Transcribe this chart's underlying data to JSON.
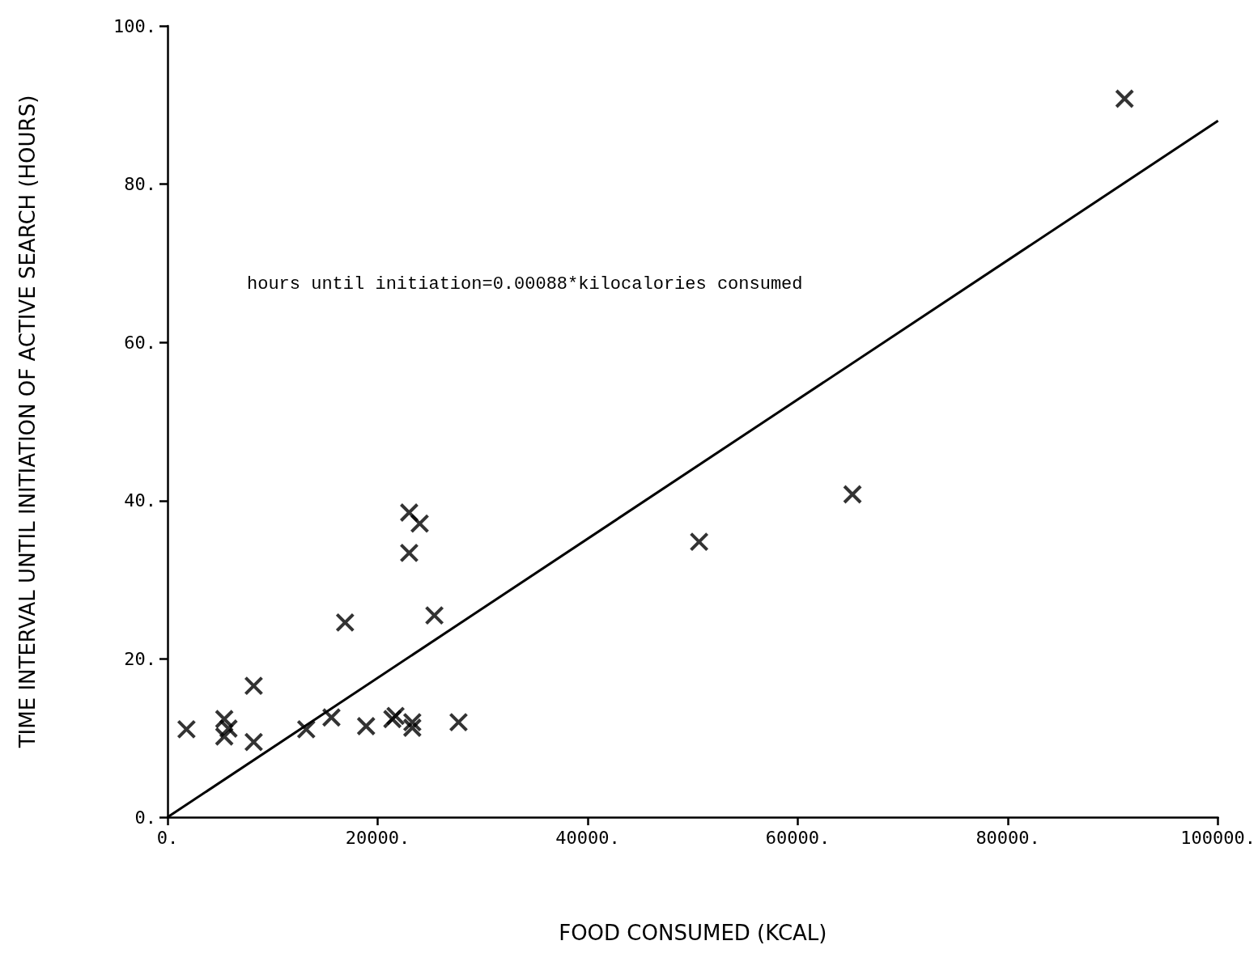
{
  "chart_data": {
    "type": "scatter",
    "xlabel": "FOOD CONSUMED (KCAL)",
    "ylabel": "TIME INTERVAL UNTIL INITIATION OF ACTIVE SEARCH (HOURS)",
    "annotations": [
      "hours until initiation=0.00088*kilocalories consumed"
    ],
    "xlim": [
      0,
      100000
    ],
    "xticks": [
      {
        "value": 0,
        "label": "0."
      },
      {
        "value": 20000,
        "label": "20000."
      },
      {
        "value": 40000,
        "label": "40000."
      },
      {
        "value": 60000,
        "label": "60000."
      },
      {
        "value": 80000,
        "label": "80000."
      },
      {
        "value": 100000,
        "label": "100000."
      }
    ],
    "ylim": [
      0,
      100
    ],
    "yticks": [
      {
        "value": 0,
        "label": "0."
      },
      {
        "value": 20,
        "label": "20."
      },
      {
        "value": 40,
        "label": "40."
      },
      {
        "value": 60,
        "label": "60."
      },
      {
        "value": 80,
        "label": "80."
      },
      {
        "value": 100,
        "label": "100."
      }
    ],
    "grid": false,
    "marker": "cross",
    "series": [
      {
        "color": "#000000",
        "x": [
          1800,
          5400,
          5400,
          5800,
          8200,
          8200,
          13200,
          15600,
          18900,
          21400,
          21700,
          23300,
          23300,
          27700,
          23000,
          24000,
          23000,
          25400,
          16900,
          50600,
          65200,
          91100
        ],
        "values": [
          11.1,
          12.4,
          10.2,
          11.2,
          16.6,
          9.5,
          11.1,
          12.6,
          11.5,
          12.4,
          12.8,
          12.0,
          11.3,
          12.0,
          38.5,
          37.1,
          33.4,
          25.5,
          24.6,
          34.8,
          40.8,
          90.8
        ]
      },
      {
        "type": "line",
        "color": "#000000",
        "marker": "none",
        "line_style": "solid",
        "x": [
          0,
          100000
        ],
        "values": [
          0,
          88
        ]
      }
    ]
  }
}
